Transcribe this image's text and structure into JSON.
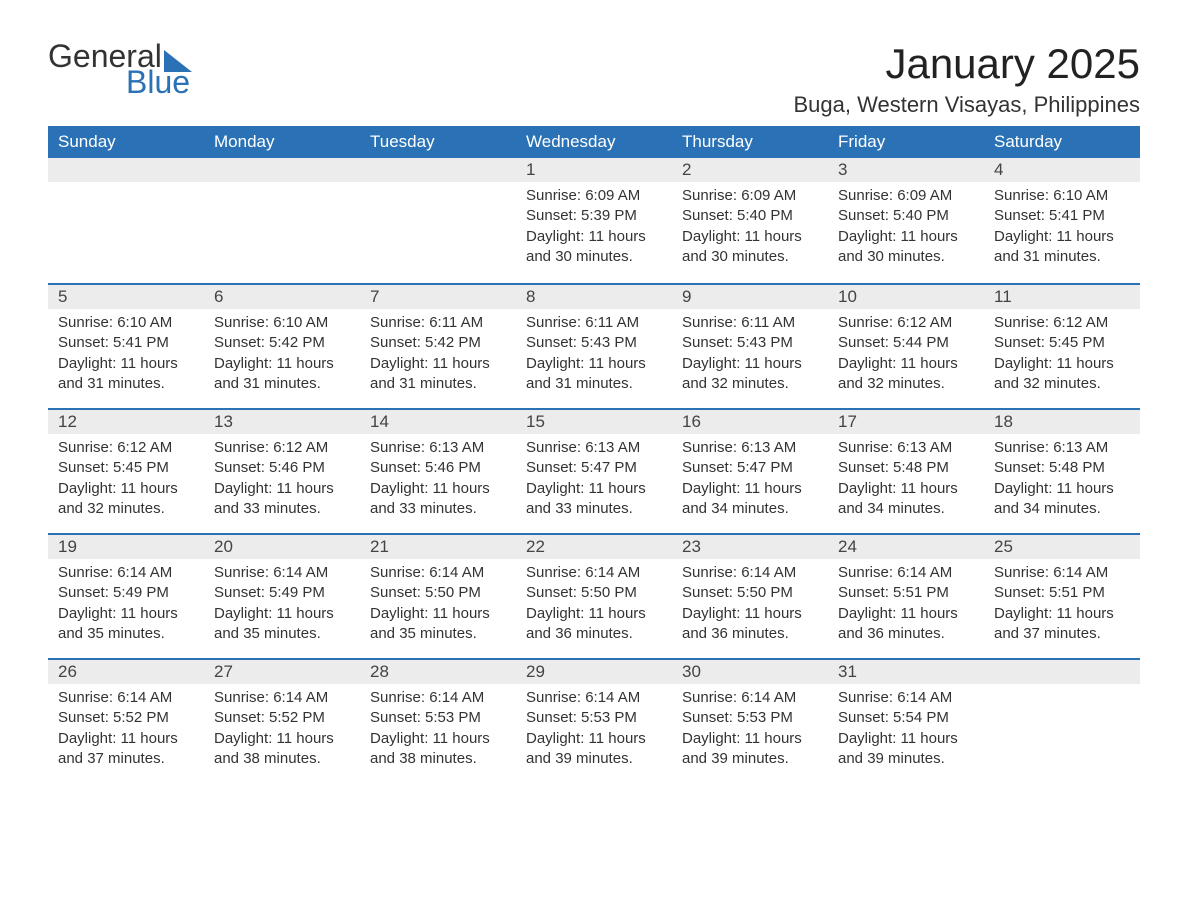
{
  "logo": {
    "word1": "General",
    "word2": "Blue",
    "accent_color": "#2a72b5"
  },
  "title": "January 2025",
  "location": "Buga, Western Visayas, Philippines",
  "colors": {
    "header_bg": "#2a72b5",
    "header_text": "#ffffff",
    "daynum_bg": "#ececec",
    "body_text": "#333333",
    "page_bg": "#ffffff"
  },
  "fonts": {
    "title_size_pt": 42,
    "location_size_pt": 22,
    "weekday_size_pt": 17,
    "daynum_size_pt": 17,
    "body_size_pt": 15
  },
  "weekdays": [
    "Sunday",
    "Monday",
    "Tuesday",
    "Wednesday",
    "Thursday",
    "Friday",
    "Saturday"
  ],
  "labels": {
    "sunrise": "Sunrise:",
    "sunset": "Sunset:",
    "daylight": "Daylight:",
    "hours_word": "hours",
    "and_word": "and",
    "minutes_word": "minutes."
  },
  "weeks": [
    [
      null,
      null,
      null,
      {
        "d": 1,
        "sunrise": "6:09 AM",
        "sunset": "5:39 PM",
        "dl_h": 11,
        "dl_m": 30
      },
      {
        "d": 2,
        "sunrise": "6:09 AM",
        "sunset": "5:40 PM",
        "dl_h": 11,
        "dl_m": 30
      },
      {
        "d": 3,
        "sunrise": "6:09 AM",
        "sunset": "5:40 PM",
        "dl_h": 11,
        "dl_m": 30
      },
      {
        "d": 4,
        "sunrise": "6:10 AM",
        "sunset": "5:41 PM",
        "dl_h": 11,
        "dl_m": 31
      }
    ],
    [
      {
        "d": 5,
        "sunrise": "6:10 AM",
        "sunset": "5:41 PM",
        "dl_h": 11,
        "dl_m": 31
      },
      {
        "d": 6,
        "sunrise": "6:10 AM",
        "sunset": "5:42 PM",
        "dl_h": 11,
        "dl_m": 31
      },
      {
        "d": 7,
        "sunrise": "6:11 AM",
        "sunset": "5:42 PM",
        "dl_h": 11,
        "dl_m": 31
      },
      {
        "d": 8,
        "sunrise": "6:11 AM",
        "sunset": "5:43 PM",
        "dl_h": 11,
        "dl_m": 31
      },
      {
        "d": 9,
        "sunrise": "6:11 AM",
        "sunset": "5:43 PM",
        "dl_h": 11,
        "dl_m": 32
      },
      {
        "d": 10,
        "sunrise": "6:12 AM",
        "sunset": "5:44 PM",
        "dl_h": 11,
        "dl_m": 32
      },
      {
        "d": 11,
        "sunrise": "6:12 AM",
        "sunset": "5:45 PM",
        "dl_h": 11,
        "dl_m": 32
      }
    ],
    [
      {
        "d": 12,
        "sunrise": "6:12 AM",
        "sunset": "5:45 PM",
        "dl_h": 11,
        "dl_m": 32
      },
      {
        "d": 13,
        "sunrise": "6:12 AM",
        "sunset": "5:46 PM",
        "dl_h": 11,
        "dl_m": 33
      },
      {
        "d": 14,
        "sunrise": "6:13 AM",
        "sunset": "5:46 PM",
        "dl_h": 11,
        "dl_m": 33
      },
      {
        "d": 15,
        "sunrise": "6:13 AM",
        "sunset": "5:47 PM",
        "dl_h": 11,
        "dl_m": 33
      },
      {
        "d": 16,
        "sunrise": "6:13 AM",
        "sunset": "5:47 PM",
        "dl_h": 11,
        "dl_m": 34
      },
      {
        "d": 17,
        "sunrise": "6:13 AM",
        "sunset": "5:48 PM",
        "dl_h": 11,
        "dl_m": 34
      },
      {
        "d": 18,
        "sunrise": "6:13 AM",
        "sunset": "5:48 PM",
        "dl_h": 11,
        "dl_m": 34
      }
    ],
    [
      {
        "d": 19,
        "sunrise": "6:14 AM",
        "sunset": "5:49 PM",
        "dl_h": 11,
        "dl_m": 35
      },
      {
        "d": 20,
        "sunrise": "6:14 AM",
        "sunset": "5:49 PM",
        "dl_h": 11,
        "dl_m": 35
      },
      {
        "d": 21,
        "sunrise": "6:14 AM",
        "sunset": "5:50 PM",
        "dl_h": 11,
        "dl_m": 35
      },
      {
        "d": 22,
        "sunrise": "6:14 AM",
        "sunset": "5:50 PM",
        "dl_h": 11,
        "dl_m": 36
      },
      {
        "d": 23,
        "sunrise": "6:14 AM",
        "sunset": "5:50 PM",
        "dl_h": 11,
        "dl_m": 36
      },
      {
        "d": 24,
        "sunrise": "6:14 AM",
        "sunset": "5:51 PM",
        "dl_h": 11,
        "dl_m": 36
      },
      {
        "d": 25,
        "sunrise": "6:14 AM",
        "sunset": "5:51 PM",
        "dl_h": 11,
        "dl_m": 37
      }
    ],
    [
      {
        "d": 26,
        "sunrise": "6:14 AM",
        "sunset": "5:52 PM",
        "dl_h": 11,
        "dl_m": 37
      },
      {
        "d": 27,
        "sunrise": "6:14 AM",
        "sunset": "5:52 PM",
        "dl_h": 11,
        "dl_m": 38
      },
      {
        "d": 28,
        "sunrise": "6:14 AM",
        "sunset": "5:53 PM",
        "dl_h": 11,
        "dl_m": 38
      },
      {
        "d": 29,
        "sunrise": "6:14 AM",
        "sunset": "5:53 PM",
        "dl_h": 11,
        "dl_m": 39
      },
      {
        "d": 30,
        "sunrise": "6:14 AM",
        "sunset": "5:53 PM",
        "dl_h": 11,
        "dl_m": 39
      },
      {
        "d": 31,
        "sunrise": "6:14 AM",
        "sunset": "5:54 PM",
        "dl_h": 11,
        "dl_m": 39
      },
      null
    ]
  ]
}
